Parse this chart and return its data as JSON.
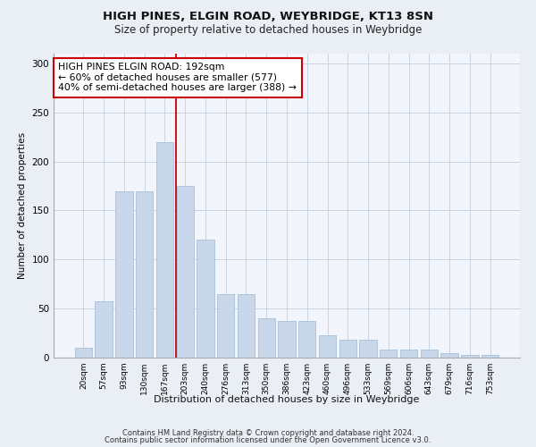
{
  "title1": "HIGH PINES, ELGIN ROAD, WEYBRIDGE, KT13 8SN",
  "title2": "Size of property relative to detached houses in Weybridge",
  "xlabel": "Distribution of detached houses by size in Weybridge",
  "ylabel": "Number of detached properties",
  "categories": [
    "20sqm",
    "57sqm",
    "93sqm",
    "130sqm",
    "167sqm",
    "203sqm",
    "240sqm",
    "276sqm",
    "313sqm",
    "350sqm",
    "386sqm",
    "423sqm",
    "460sqm",
    "496sqm",
    "533sqm",
    "569sqm",
    "606sqm",
    "643sqm",
    "679sqm",
    "716sqm",
    "753sqm"
  ],
  "bar_heights": [
    10,
    57,
    170,
    170,
    220,
    175,
    120,
    65,
    65,
    40,
    37,
    37,
    23,
    18,
    18,
    8,
    8,
    8,
    5,
    3,
    3
  ],
  "bar_color": "#c8d8ea",
  "bar_edge_color": "#a8c0d8",
  "grid_color": "#c8d4e4",
  "annotation_text": "HIGH PINES ELGIN ROAD: 192sqm\n← 60% of detached houses are smaller (577)\n40% of semi-detached houses are larger (388) →",
  "vline_color": "#cc0000",
  "vline_pos": 4.55,
  "annotation_box_color": "#ffffff",
  "annotation_box_edge": "#cc0000",
  "footer1": "Contains HM Land Registry data © Crown copyright and database right 2024.",
  "footer2": "Contains public sector information licensed under the Open Government Licence v3.0.",
  "ylim": [
    0,
    310
  ],
  "yticks": [
    0,
    50,
    100,
    150,
    200,
    250,
    300
  ],
  "bg_color": "#eaeef5",
  "plot_bg_color": "#f2f5fb"
}
